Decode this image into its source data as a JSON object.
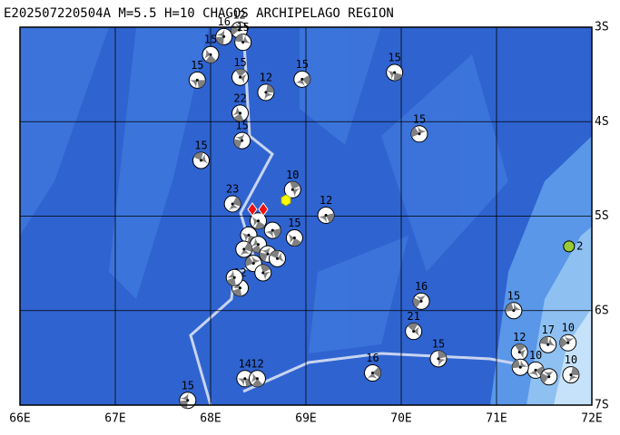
{
  "title": "E202507220504A M=5.5 H=10 CHAGOS ARCHIPELAGO REGION",
  "lon_ticks": [
    {
      "value": 66,
      "label": "66E"
    },
    {
      "value": 67,
      "label": "67E"
    },
    {
      "value": 68,
      "label": "68E"
    },
    {
      "value": 69,
      "label": "69E"
    },
    {
      "value": 70,
      "label": "70E"
    },
    {
      "value": 71,
      "label": "71E"
    },
    {
      "value": 72,
      "label": "72E"
    }
  ],
  "lat_ticks": [
    {
      "value": 3,
      "label": "3S"
    },
    {
      "value": 4,
      "label": "4S"
    },
    {
      "value": 5,
      "label": "5S"
    },
    {
      "value": 6,
      "label": "6S"
    },
    {
      "value": 7,
      "label": "7S"
    }
  ],
  "lonlim": [
    66,
    72
  ],
  "latlim": [
    3,
    7
  ],
  "events": [
    {
      "label": "15",
      "lon": 67.86,
      "lat": 3.56
    },
    {
      "label": "15",
      "lon": 68.0,
      "lat": 3.29
    },
    {
      "label": "16",
      "lon": 68.14,
      "lat": 3.1
    },
    {
      "label": "12",
      "lon": 68.3,
      "lat": 3.03
    },
    {
      "label": "15",
      "lon": 68.34,
      "lat": 3.16
    },
    {
      "label": "15",
      "lon": 68.31,
      "lat": 3.53
    },
    {
      "label": "12",
      "lon": 68.58,
      "lat": 3.69
    },
    {
      "label": "15",
      "lon": 68.96,
      "lat": 3.55
    },
    {
      "label": "15",
      "lon": 69.93,
      "lat": 3.48
    },
    {
      "label": "22",
      "lon": 68.31,
      "lat": 3.91
    },
    {
      "label": "15",
      "lon": 68.33,
      "lat": 4.2
    },
    {
      "label": "15",
      "lon": 70.19,
      "lat": 4.13
    },
    {
      "label": "15",
      "lon": 67.9,
      "lat": 4.41
    },
    {
      "label": "10",
      "lon": 68.86,
      "lat": 4.72
    },
    {
      "label": "23",
      "lon": 68.23,
      "lat": 4.87
    },
    {
      "label": "12",
      "lon": 69.21,
      "lat": 4.99
    },
    {
      "label": "15",
      "lon": 68.88,
      "lat": 5.23
    },
    {
      "label": "12",
      "lon": 68.31,
      "lat": 5.76
    },
    {
      "label": "16",
      "lon": 70.21,
      "lat": 5.9
    },
    {
      "label": "15",
      "lon": 71.18,
      "lat": 6.0
    },
    {
      "label": "21",
      "lon": 70.13,
      "lat": 6.22
    },
    {
      "label": "15",
      "lon": 70.39,
      "lat": 6.51
    },
    {
      "label": "16",
      "lon": 69.7,
      "lat": 6.66
    },
    {
      "label": "14",
      "lon": 68.36,
      "lat": 6.72
    },
    {
      "label": "12",
      "lon": 68.49,
      "lat": 6.72
    },
    {
      "label": "15",
      "lon": 67.76,
      "lat": 6.95
    },
    {
      "label": "10",
      "lon": 71.75,
      "lat": 6.34
    },
    {
      "label": "17",
      "lon": 71.54,
      "lat": 6.36
    },
    {
      "label": "12",
      "lon": 71.24,
      "lat": 6.44
    },
    {
      "label": "10",
      "lon": 71.78,
      "lat": 6.68
    },
    {
      "label": "10",
      "lon": 71.41,
      "lat": 6.63
    },
    {
      "label": null,
      "lon": 68.4,
      "lat": 5.2
    },
    {
      "label": null,
      "lon": 68.5,
      "lat": 5.3
    },
    {
      "label": null,
      "lon": 68.6,
      "lat": 5.4
    },
    {
      "label": null,
      "lon": 68.45,
      "lat": 5.5
    },
    {
      "label": null,
      "lon": 68.7,
      "lat": 5.45
    },
    {
      "label": null,
      "lon": 68.55,
      "lat": 5.6
    },
    {
      "label": null,
      "lon": 68.35,
      "lat": 5.35
    },
    {
      "label": null,
      "lon": 68.65,
      "lat": 5.15
    },
    {
      "label": null,
      "lon": 68.5,
      "lat": 5.05
    },
    {
      "label": null,
      "lon": 68.25,
      "lat": 5.65
    },
    {
      "label": null,
      "lon": 71.55,
      "lat": 6.7
    },
    {
      "label": null,
      "lon": 71.25,
      "lat": 6.6
    }
  ],
  "green_event": {
    "label": "2",
    "lon": 71.76,
    "lat": 5.32
  }
}
